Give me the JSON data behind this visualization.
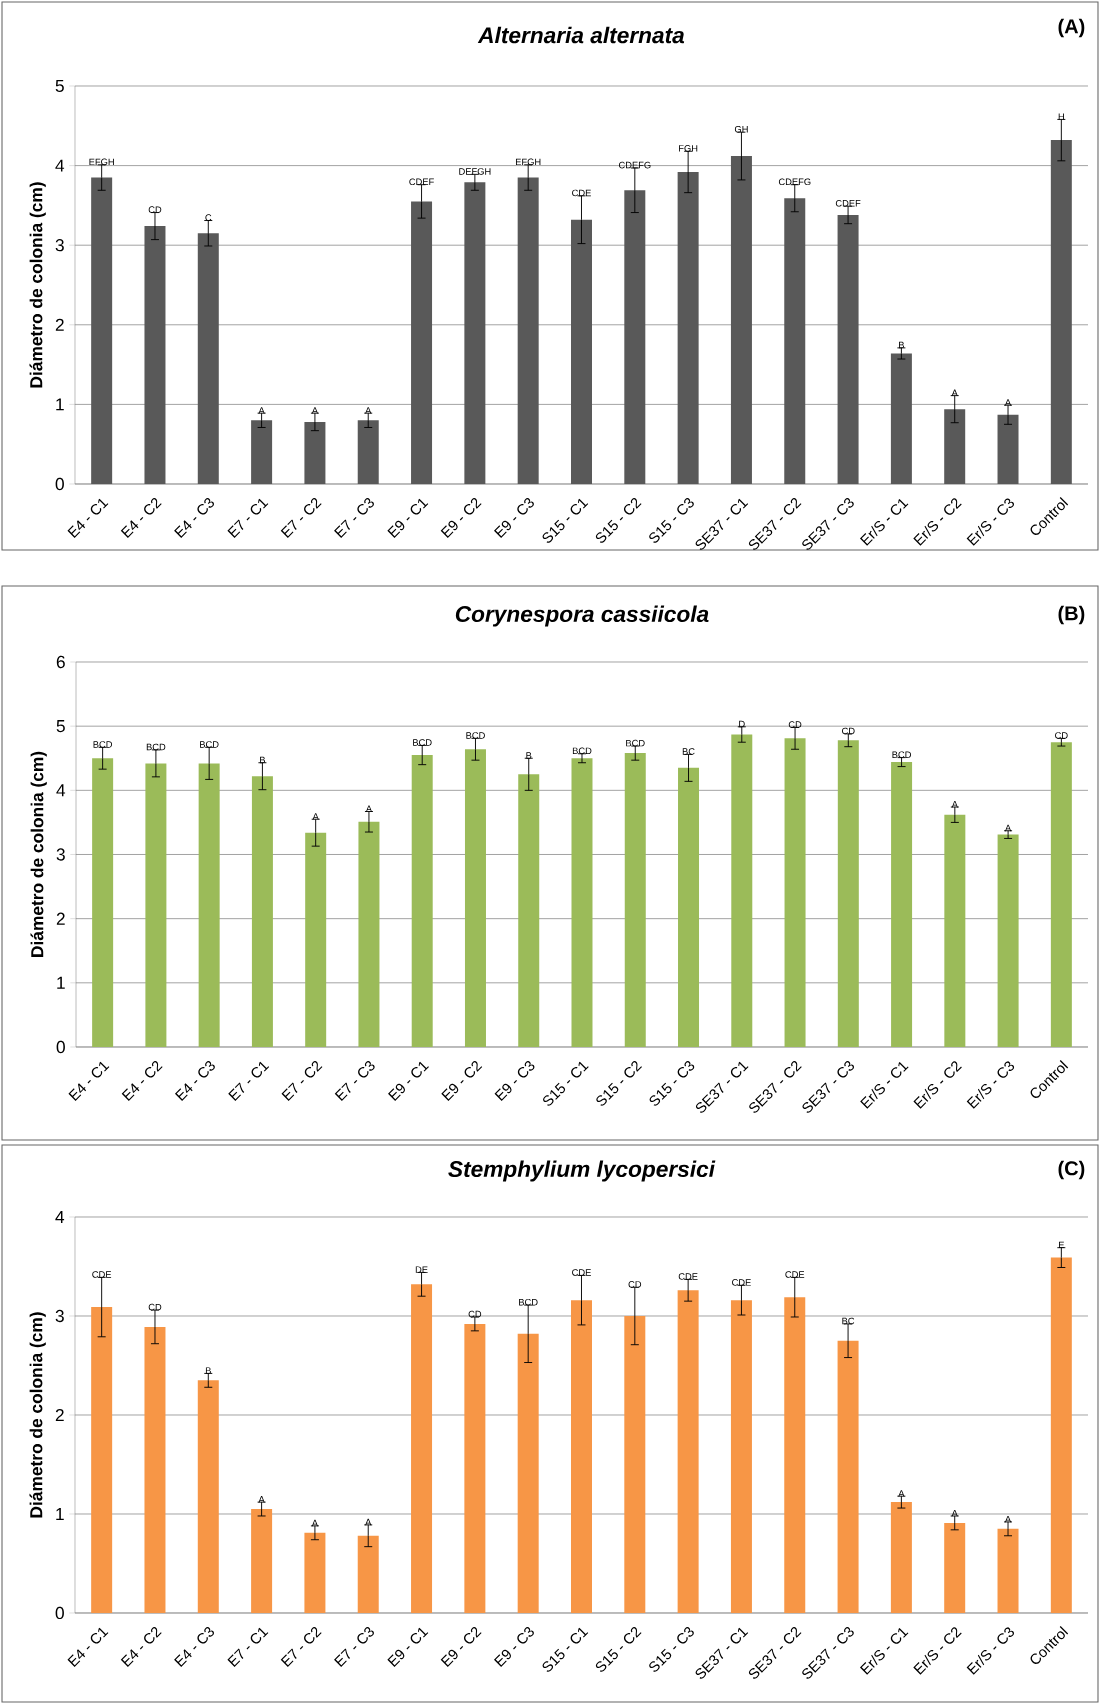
{
  "chart_data": [
    {
      "type": "bar",
      "title": "Alternaria alternata",
      "ylabel": "Diámetro de colonia (cm)",
      "annotations": [
        "(A)"
      ],
      "color": "#595959",
      "grid": "y",
      "ylim": [
        0,
        5
      ],
      "yticks": [
        0,
        1,
        2,
        3,
        4,
        5
      ],
      "categories": [
        "E4 - C1",
        "E4 - C2",
        "E4 - C3",
        "E7 - C1",
        "E7 - C2",
        "E7 - C3",
        "E9 - C1",
        "E9 - C2",
        "E9 - C3",
        "S15 - C1",
        "S15 - C2",
        "S15 - C3",
        "SE37 - C1",
        "SE37 - C2",
        "SE37 - C3",
        "Er/S - C1",
        "Er/S - C2",
        "Er/S - C3",
        "Control"
      ],
      "values": [
        3.85,
        3.24,
        3.15,
        0.8,
        0.78,
        0.8,
        3.55,
        3.79,
        3.85,
        3.32,
        3.69,
        3.92,
        4.12,
        3.59,
        3.38,
        1.64,
        0.94,
        0.87,
        4.32
      ],
      "errors": [
        0.16,
        0.17,
        0.16,
        0.09,
        0.11,
        0.09,
        0.21,
        0.1,
        0.16,
        0.3,
        0.28,
        0.26,
        0.3,
        0.17,
        0.11,
        0.07,
        0.17,
        0.12,
        0.26
      ],
      "value_labels": [
        "EFGH",
        "CD",
        "C",
        "A",
        "A",
        "A",
        "CDEF",
        "DEFGH",
        "EFGH",
        "CDE",
        "CDEFG",
        "FGH",
        "GH",
        "CDEFG",
        "CDEF",
        "B",
        "A",
        "A",
        "H"
      ]
    },
    {
      "type": "bar",
      "title": "Corynespora cassiicola",
      "ylabel": "Diámetro de colonia (cm)",
      "annotations": [
        "(B)"
      ],
      "color": "#9bbb59",
      "grid": "y",
      "ylim": [
        0,
        6
      ],
      "yticks": [
        0,
        1,
        2,
        3,
        4,
        5,
        6
      ],
      "categories": [
        "E4 - C1",
        "E4 - C2",
        "E4 - C3",
        "E7 - C1",
        "E7 - C2",
        "E7 - C3",
        "E9 - C1",
        "E9 - C2",
        "E9 - C3",
        "S15 - C1",
        "S15 - C2",
        "S15 - C3",
        "SE37 - C1",
        "SE37 - C2",
        "SE37 - C3",
        "Er/S - C1",
        "Er/S - C2",
        "Er/S - C3",
        "Control"
      ],
      "values": [
        4.5,
        4.42,
        4.42,
        4.22,
        3.34,
        3.51,
        4.55,
        4.64,
        4.25,
        4.5,
        4.58,
        4.35,
        4.87,
        4.81,
        4.78,
        4.44,
        3.62,
        3.31,
        4.75
      ],
      "errors": [
        0.17,
        0.21,
        0.25,
        0.21,
        0.21,
        0.16,
        0.15,
        0.17,
        0.25,
        0.07,
        0.11,
        0.21,
        0.12,
        0.17,
        0.1,
        0.07,
        0.12,
        0.06,
        0.06
      ],
      "value_labels": [
        "BCD",
        "BCD",
        "BCD",
        "B",
        "A",
        "A",
        "BCD",
        "BCD",
        "B",
        "BCD",
        "BCD",
        "BC",
        "D",
        "CD",
        "CD",
        "BCD",
        "A",
        "A",
        "CD"
      ]
    },
    {
      "type": "bar",
      "title": "Stemphylium lycopersici",
      "ylabel": "Diámetro de colonia (cm)",
      "annotations": [
        "(C)"
      ],
      "color": "#f79646",
      "grid": "y",
      "ylim": [
        0,
        4
      ],
      "yticks": [
        0,
        1,
        2,
        3,
        4
      ],
      "categories": [
        "E4 - C1",
        "E4 - C2",
        "E4 - C3",
        "E7 - C1",
        "E7 - C2",
        "E7 - C3",
        "E9 - C1",
        "E9 - C2",
        "E9 - C3",
        "S15 - C1",
        "S15 - C2",
        "S15 - C3",
        "SE37 - C1",
        "SE37 - C2",
        "SE37 - C3",
        "Er/S - C1",
        "Er/S - C2",
        "Er/S - C3",
        "Control"
      ],
      "values": [
        3.09,
        2.89,
        2.35,
        1.05,
        0.81,
        0.78,
        3.32,
        2.92,
        2.82,
        3.16,
        3.0,
        3.26,
        3.16,
        3.19,
        2.75,
        1.12,
        0.91,
        0.85,
        3.59
      ],
      "errors": [
        0.3,
        0.17,
        0.07,
        0.07,
        0.07,
        0.11,
        0.12,
        0.07,
        0.29,
        0.25,
        0.29,
        0.11,
        0.15,
        0.2,
        0.17,
        0.06,
        0.07,
        0.07,
        0.1
      ],
      "value_labels": [
        "CDE",
        "CD",
        "B",
        "A",
        "A",
        "A",
        "DE",
        "CD",
        "BCD",
        "CDE",
        "CD",
        "CDE",
        "CDE",
        "CDE",
        "BC",
        "A",
        "A",
        "A",
        "E"
      ]
    }
  ]
}
